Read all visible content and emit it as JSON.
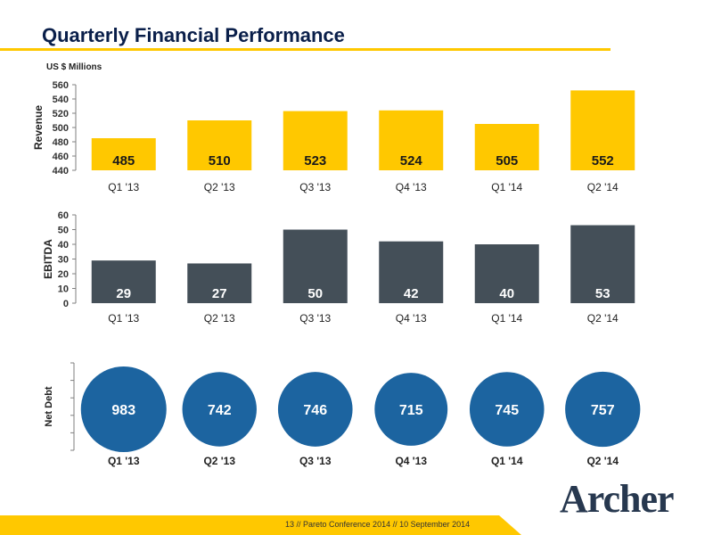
{
  "page": {
    "title": "Quarterly Financial Performance",
    "units": "US $ Millions",
    "footer": "13  //  Pareto Conference  2014  //  10 September 2014",
    "logo": "Archer"
  },
  "colors": {
    "revenue": "#ffc800",
    "ebitda": "#444f58",
    "net_debt": "#1c64a0",
    "accent": "#ffc800",
    "axis": "#7f7f7f",
    "title": "#0a1f4a"
  },
  "chart_data": [
    {
      "type": "bar",
      "ylabel": "Revenue",
      "categories": [
        "Q1 '13",
        "Q2 '13",
        "Q3 '13",
        "Q4 '13",
        "Q1 '14",
        "Q2 '14"
      ],
      "values": [
        485,
        510,
        523,
        524,
        505,
        552
      ],
      "ylim": [
        440,
        560
      ],
      "yticks": [
        440,
        460,
        480,
        500,
        520,
        540,
        560
      ],
      "grid": false,
      "data_labels": true
    },
    {
      "type": "bar",
      "ylabel": "EBITDA",
      "categories": [
        "Q1 '13",
        "Q2 '13",
        "Q3 '13",
        "Q4 '13",
        "Q1 '14",
        "Q2 '14"
      ],
      "values": [
        29,
        27,
        50,
        42,
        40,
        53
      ],
      "ylim": [
        0,
        60
      ],
      "yticks": [
        0,
        10,
        20,
        30,
        40,
        50,
        60
      ],
      "grid": false,
      "data_labels": true
    },
    {
      "type": "scatter",
      "ylabel": "Net Debt",
      "categories": [
        "Q1 '13",
        "Q2 '13",
        "Q3 '13",
        "Q4 '13",
        "Q1 '14",
        "Q2 '14"
      ],
      "values": [
        983,
        742,
        746,
        715,
        745,
        757
      ],
      "grid": false,
      "data_labels": true
    }
  ]
}
